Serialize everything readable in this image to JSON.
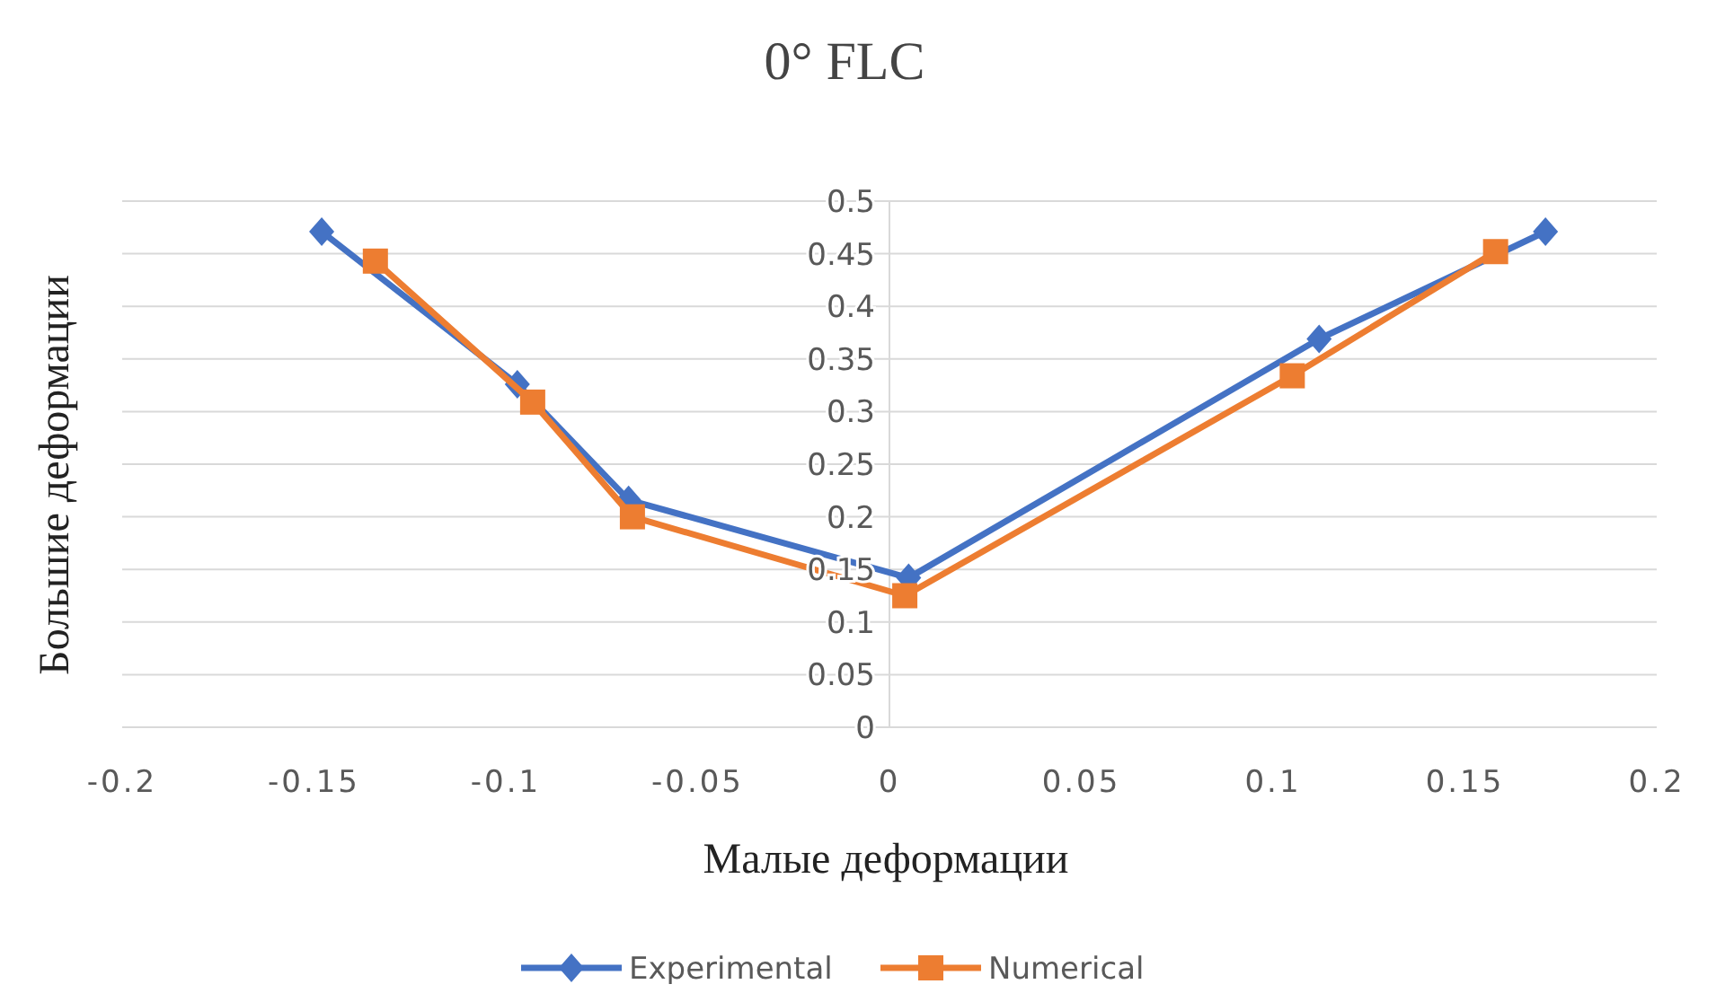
{
  "chart_data": {
    "type": "line",
    "title": "0°  FLC",
    "xlabel": "Малые деформации",
    "ylabel": "Большие деформации",
    "xlim": [
      -0.2,
      0.2
    ],
    "xticks": [
      -0.2,
      -0.15,
      -0.1,
      -0.05,
      0,
      0.05,
      0.1,
      0.15,
      0.2
    ],
    "ylim": [
      0,
      0.5
    ],
    "yticks": [
      0,
      0.05,
      0.1,
      0.15,
      0.2,
      0.25,
      0.3,
      0.35,
      0.4,
      0.45,
      0.5
    ],
    "grid": "y",
    "legend": "bottom",
    "line_style": "solid",
    "series": [
      {
        "name": "Experimental",
        "color": "#4472c4",
        "marker": "diamond",
        "x": [
          -0.148,
          -0.097,
          -0.068,
          0.005,
          0.112,
          0.171
        ],
        "values": [
          0.471,
          0.326,
          0.216,
          0.142,
          0.369,
          0.471
        ]
      },
      {
        "name": "Numerical",
        "color": "#ed7d31",
        "marker": "square",
        "x": [
          -0.134,
          -0.093,
          -0.067,
          0.004,
          0.105,
          0.158
        ],
        "values": [
          0.443,
          0.309,
          0.2,
          0.125,
          0.334,
          0.452
        ]
      }
    ]
  }
}
